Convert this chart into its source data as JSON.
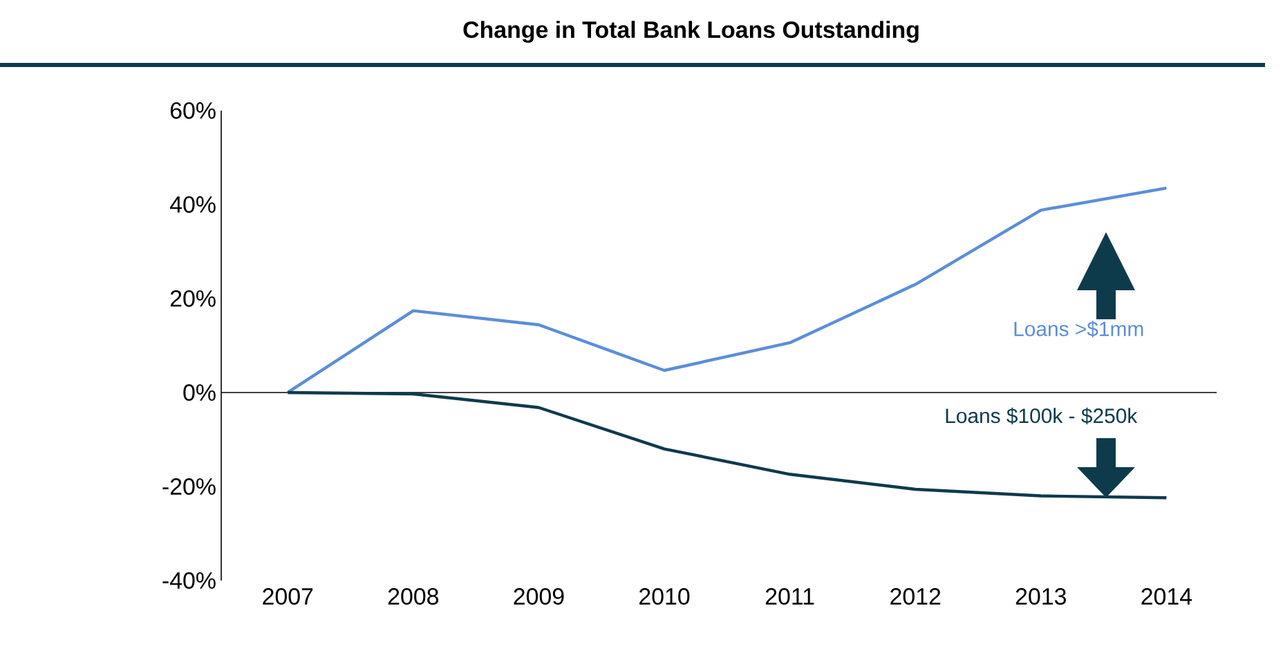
{
  "chart_data": {
    "type": "line",
    "title": "Change in Total Bank Loans Outstanding",
    "categories": [
      "2007",
      "2008",
      "2009",
      "2010",
      "2011",
      "2012",
      "2013",
      "2014"
    ],
    "series": [
      {
        "name": "Loans >$1mm",
        "color": "#5b8ed8",
        "values": [
          0,
          17.4,
          14.4,
          4.7,
          10.6,
          23,
          38.8,
          43.5
        ]
      },
      {
        "name": "Loans $100k - $250k",
        "color": "#0e3b4c",
        "values": [
          0,
          -0.3,
          -3.2,
          -12,
          -17.4,
          -20.6,
          -22,
          -22.4
        ]
      }
    ],
    "ylim": [
      -40,
      60
    ],
    "yticks": [
      {
        "value": -40,
        "label": "-40%"
      },
      {
        "value": -20,
        "label": "-20%"
      },
      {
        "value": 0,
        "label": "0%"
      },
      {
        "value": 20,
        "label": "20%"
      },
      {
        "value": 40,
        "label": "40%"
      },
      {
        "value": 60,
        "label": "60%"
      }
    ],
    "marker": "none",
    "line_style": "solid"
  }
}
